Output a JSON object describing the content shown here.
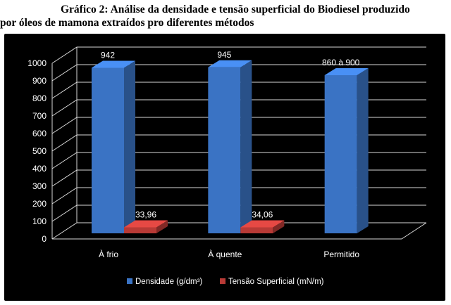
{
  "caption": {
    "line1": "Gráfico 2: Análise da densidade e tensão superficial do Biodiesel produzido",
    "line2": "por óleos de mamona extraídos pro diferentes métodos"
  },
  "chart_data": {
    "type": "bar",
    "categories": [
      "À frio",
      "À quente",
      "Permitido"
    ],
    "series": [
      {
        "name": "Densidade (g/dm³)",
        "values": [
          942,
          945,
          900
        ],
        "labels": [
          "942",
          "945",
          "860 à 900"
        ],
        "color": "#3a73c4"
      },
      {
        "name": "Tensão Superficial (mN/m)",
        "values": [
          33.96,
          34.06,
          null
        ],
        "labels": [
          "33,96",
          "34,06",
          ""
        ],
        "color": "#b83a36"
      }
    ],
    "yticks": [
      "0",
      "100",
      "200",
      "300",
      "400",
      "500",
      "600",
      "700",
      "800",
      "900",
      "1000"
    ],
    "ylim": [
      0,
      1000
    ],
    "grid": true,
    "legend": "bottom",
    "background": "#000000"
  }
}
